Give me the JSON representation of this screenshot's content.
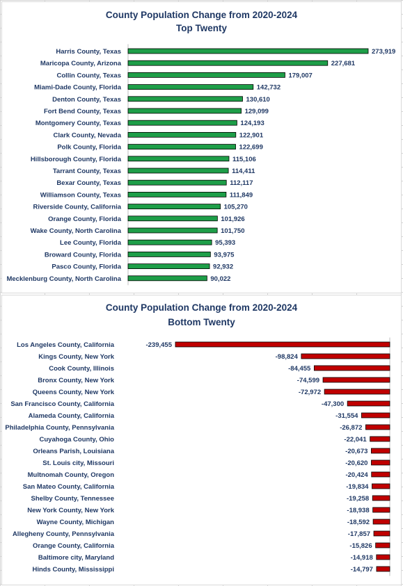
{
  "chart_data": [
    {
      "type": "bar",
      "orientation": "horizontal",
      "title": "County Population Change from 2020-2024",
      "subtitle": "Top Twenty",
      "bar_color": "#1e9e48",
      "categories": [
        "Harris County, Texas",
        "Maricopa County, Arizona",
        "Collin County, Texas",
        "Miami-Dade County, Florida",
        "Denton County, Texas",
        "Fort Bend County, Texas",
        "Montgomery County, Texas",
        "Clark County, Nevada",
        "Polk County, Florida",
        "Hillsborough County, Florida",
        "Tarrant County, Texas",
        "Bexar County, Texas",
        "Williamson County, Texas",
        "Riverside County, California",
        "Orange County, Florida",
        "Wake County, North Carolina",
        "Lee County, Florida",
        "Broward County, Florida",
        "Pasco County, Florida",
        "Mecklenburg County, North Carolina"
      ],
      "values": [
        273919,
        227681,
        179007,
        142732,
        130610,
        129099,
        124193,
        122901,
        122699,
        115106,
        114411,
        112117,
        111849,
        105270,
        101926,
        101750,
        95393,
        93975,
        92932,
        90022
      ],
      "value_labels": [
        "273,919",
        "227,681",
        "179,007",
        "142,732",
        "130,610",
        "129,099",
        "124,193",
        "122,901",
        "122,699",
        "115,106",
        "114,411",
        "112,117",
        "111,849",
        "105,270",
        "101,926",
        "101,750",
        "95,393",
        "93,975",
        "92,932",
        "90,022"
      ],
      "xlim": [
        0,
        273919
      ],
      "grid": false,
      "legend": "none"
    },
    {
      "type": "bar",
      "orientation": "horizontal",
      "title": "County Population Change from 2020-2024",
      "subtitle": "Bottom Twenty",
      "bar_color": "#c00000",
      "categories": [
        "Los Angeles County, California",
        "Kings County, New York",
        "Cook County, Illinois",
        "Bronx County, New York",
        "Queens County, New York",
        "San Francisco County, California",
        "Alameda County, California",
        "Philadelphia County, Pennsylvania",
        "Cuyahoga County, Ohio",
        "Orleans Parish, Louisiana",
        "St. Louis city, Missouri",
        "Multnomah County, Oregon",
        "San Mateo County, California",
        "Shelby County, Tennessee",
        "New York County, New York",
        "Wayne County, Michigan",
        "Allegheny County, Pennsylvania",
        "Orange County, California",
        "Baltimore city, Maryland",
        "Hinds County, Mississippi"
      ],
      "values": [
        -239455,
        -98824,
        -84455,
        -74599,
        -72972,
        -47300,
        -31554,
        -26872,
        -22041,
        -20673,
        -20620,
        -20424,
        -19834,
        -19258,
        -18938,
        -18592,
        -17857,
        -15826,
        -14918,
        -14797
      ],
      "value_labels": [
        "-239,455",
        "-98,824",
        "-84,455",
        "-74,599",
        "-72,972",
        "-47,300",
        "-31,554",
        "-26,872",
        "-22,041",
        "-20,673",
        "-20,620",
        "-20,424",
        "-19,834",
        "-19,258",
        "-18,938",
        "-18,592",
        "-17,857",
        "-15,826",
        "-14,918",
        "-14,797"
      ],
      "xlim": [
        -239455,
        0
      ],
      "grid": false,
      "legend": "none"
    }
  ]
}
